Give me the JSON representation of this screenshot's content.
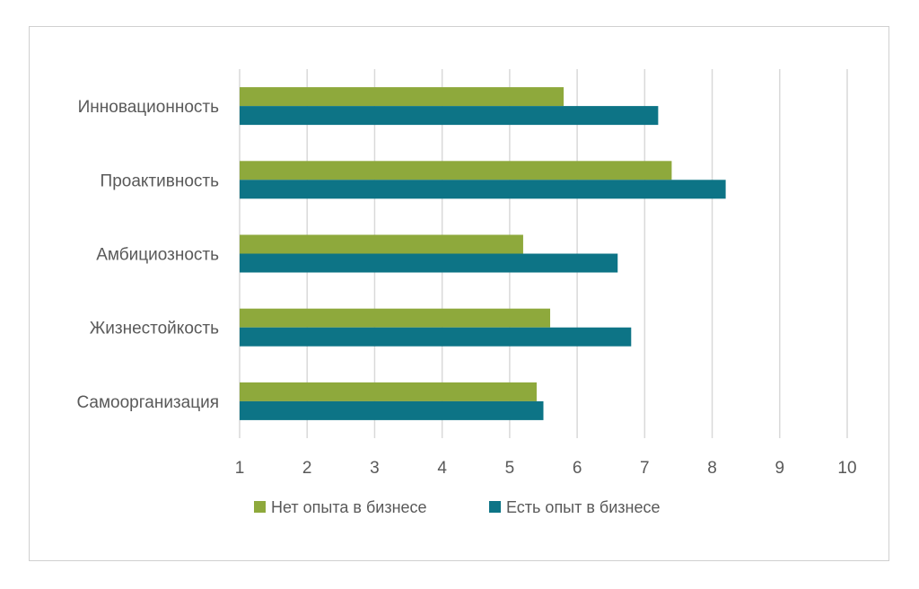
{
  "chart_data": {
    "type": "bar",
    "orientation": "horizontal",
    "categories": [
      "Инновационность",
      "Проактивность",
      "Амбициозность",
      "Жизнестойкость",
      "Самоорганизация"
    ],
    "series": [
      {
        "name": "Нет опыта в бизнесе",
        "color": "#8ea93c",
        "values": [
          5.8,
          7.4,
          5.2,
          5.6,
          5.4
        ]
      },
      {
        "name": "Есть опыт в бизнесе",
        "color": "#0d7486",
        "values": [
          7.2,
          8.2,
          6.6,
          6.8,
          5.5
        ]
      }
    ],
    "xlim": [
      1,
      10
    ],
    "xticks": [
      "1",
      "2",
      "3",
      "4",
      "5",
      "6",
      "7",
      "8",
      "9",
      "10"
    ],
    "grid": true,
    "legend_position": "bottom",
    "gridline_color": "#d9d9d9"
  }
}
